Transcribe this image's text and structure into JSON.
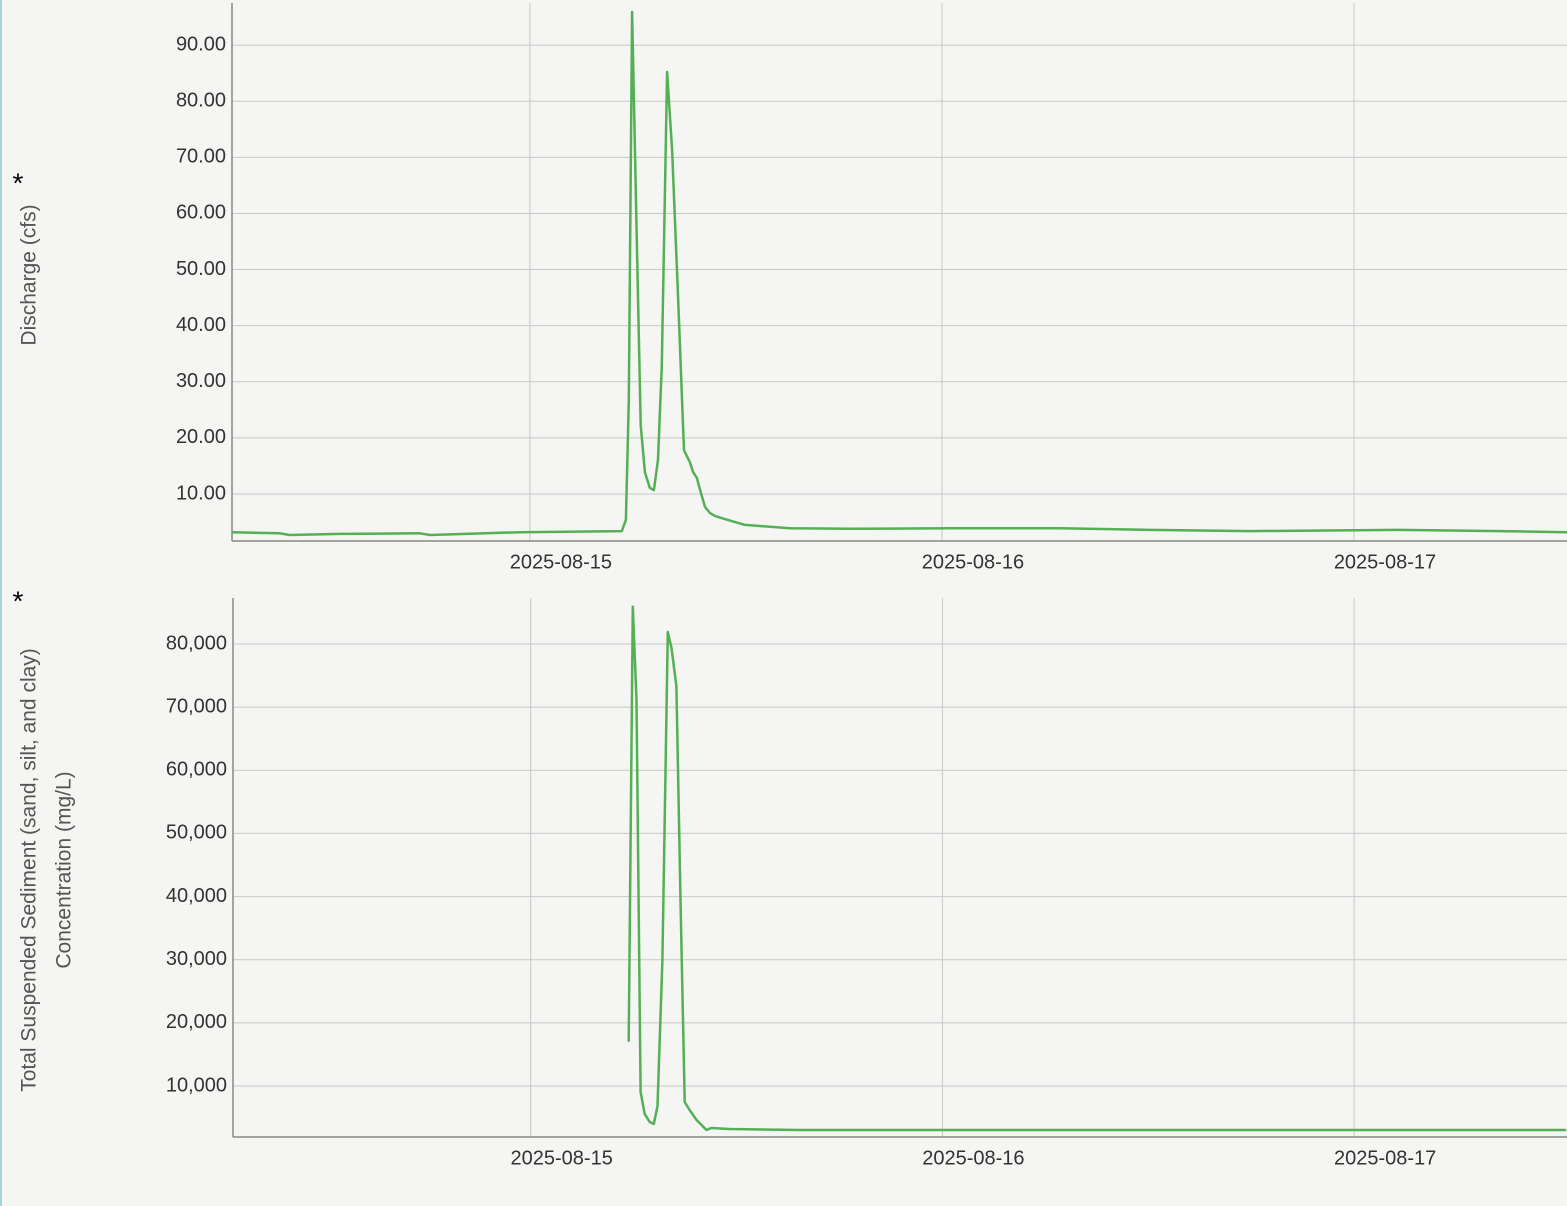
{
  "chart_data": [
    {
      "type": "line",
      "annotation": "*",
      "ylabel": [
        "Discharge (cfs)"
      ],
      "color": "#55b055",
      "grid": true,
      "xlim": [
        14.277,
        17.517
      ],
      "xticks": [
        {
          "value": 15,
          "label": "2025-08-15"
        },
        {
          "value": 16,
          "label": "2025-08-16"
        },
        {
          "value": 17,
          "label": "2025-08-17"
        }
      ],
      "ylim": [
        1.63,
        97.5
      ],
      "yticks": [
        {
          "value": 10,
          "label": "10.00"
        },
        {
          "value": 20,
          "label": "20.00"
        },
        {
          "value": 30,
          "label": "30.00"
        },
        {
          "value": 40,
          "label": "40.00"
        },
        {
          "value": 50,
          "label": "50.00"
        },
        {
          "value": 60,
          "label": "60.00"
        },
        {
          "value": 70,
          "label": "70.00"
        },
        {
          "value": 80,
          "label": "80.00"
        },
        {
          "value": 90,
          "label": "90.00"
        }
      ],
      "x": [
        14.277,
        14.393,
        14.417,
        14.539,
        14.733,
        14.757,
        14.976,
        15.223,
        15.233,
        15.24,
        15.248,
        15.26,
        15.269,
        15.279,
        15.291,
        15.301,
        15.311,
        15.32,
        15.333,
        15.345,
        15.359,
        15.374,
        15.388,
        15.396,
        15.405,
        15.413,
        15.425,
        15.437,
        15.449,
        15.466,
        15.498,
        15.522,
        15.558,
        15.631,
        15.777,
        16.019,
        16.286,
        16.505,
        16.748,
        17.112,
        17.354,
        17.517
      ],
      "values": [
        3.2,
        3.0,
        2.7,
        2.9,
        3.0,
        2.7,
        3.2,
        3.4,
        5.4,
        26.7,
        95.9,
        53.5,
        22.3,
        13.9,
        11.1,
        10.7,
        16.1,
        33.0,
        85.2,
        71.3,
        46.3,
        17.8,
        15.7,
        13.9,
        12.9,
        10.7,
        7.7,
        6.6,
        6.1,
        5.7,
        5.0,
        4.5,
        4.3,
        3.9,
        3.8,
        3.9,
        3.9,
        3.6,
        3.4,
        3.6,
        3.4,
        3.2
      ]
    },
    {
      "type": "line",
      "annotation": "*",
      "ylabel": [
        "Total Suspended Sediment (sand, silt, and clay)",
        "Concentration (mg/L)"
      ],
      "color": "#55b055",
      "grid": true,
      "xlim": [
        14.277,
        17.517
      ],
      "xticks": [
        {
          "value": 15,
          "label": "2025-08-15"
        },
        {
          "value": 16,
          "label": "2025-08-16"
        },
        {
          "value": 17,
          "label": "2025-08-17"
        }
      ],
      "ylim": [
        1924,
        87285
      ],
      "yticks": [
        {
          "value": 10000,
          "label": "10,000"
        },
        {
          "value": 20000,
          "label": "20,000"
        },
        {
          "value": 30000,
          "label": "30,000"
        },
        {
          "value": 40000,
          "label": "40,000"
        },
        {
          "value": 50000,
          "label": "50,000"
        },
        {
          "value": 60000,
          "label": "60,000"
        },
        {
          "value": 70000,
          "label": "70,000"
        },
        {
          "value": 80000,
          "label": "80,000"
        }
      ],
      "x": [
        15.238,
        15.248,
        15.257,
        15.267,
        15.277,
        15.289,
        15.299,
        15.308,
        15.32,
        15.333,
        15.342,
        15.354,
        15.364,
        15.374,
        15.386,
        15.403,
        15.427,
        15.439,
        15.483,
        15.653,
        17.515
      ],
      "values": [
        17000,
        85900,
        71100,
        9050,
        5566,
        4300,
        3980,
        6830,
        29950,
        81900,
        79360,
        73340,
        39450,
        7470,
        6200,
        4620,
        3030,
        3350,
        3190,
        3030,
        3030
      ]
    }
  ]
}
